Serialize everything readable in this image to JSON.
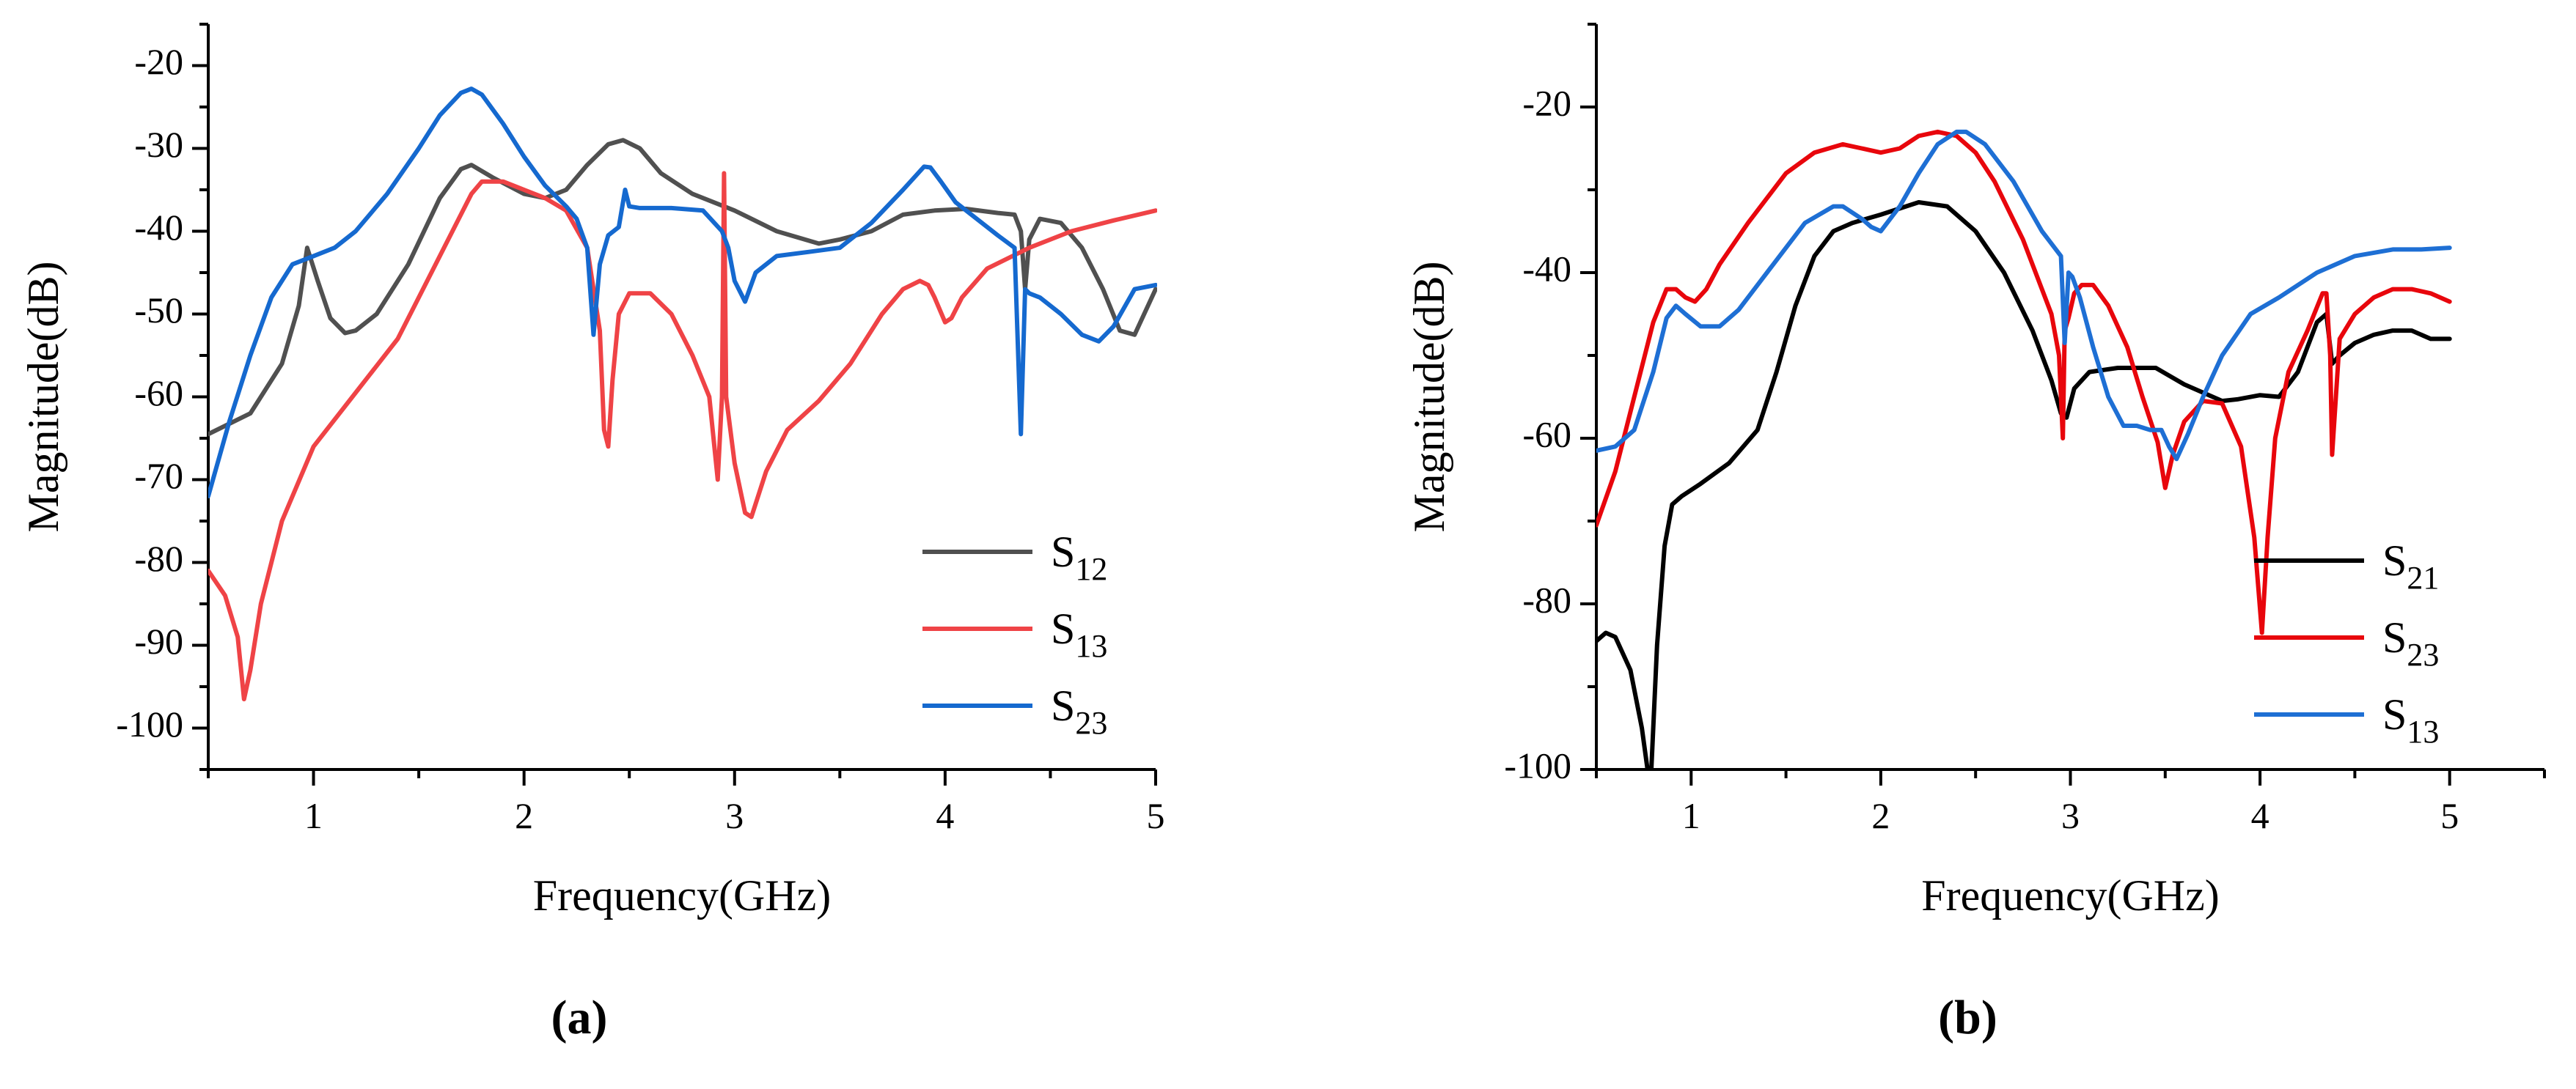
{
  "chart_data": [
    {
      "type": "line",
      "panel_label": "(a)",
      "xlabel": "Frequency(GHz)",
      "ylabel": "Magnitude(dB)",
      "xlim": [
        0.5,
        5
      ],
      "ylim": [
        -105,
        -15
      ],
      "xticks": [
        1,
        2,
        3,
        4,
        5
      ],
      "yticks": [
        -20,
        -30,
        -40,
        -50,
        -60,
        -70,
        -80,
        -90,
        -100
      ],
      "grid": false,
      "legend_position": "bottom-right",
      "series": [
        {
          "name": "S12",
          "label_main": "S",
          "label_sub": "12",
          "color": "#505050",
          "x": [
            0.5,
            0.7,
            0.85,
            0.93,
            0.97,
            1.02,
            1.08,
            1.15,
            1.2,
            1.3,
            1.45,
            1.6,
            1.7,
            1.75,
            1.85,
            2.0,
            2.1,
            2.2,
            2.3,
            2.4,
            2.47,
            2.55,
            2.65,
            2.8,
            3.0,
            3.2,
            3.4,
            3.5,
            3.65,
            3.8,
            3.95,
            4.1,
            4.25,
            4.33,
            4.36,
            4.38,
            4.4,
            4.45,
            4.55,
            4.65,
            4.75,
            4.83,
            4.9,
            5.0
          ],
          "y": [
            -64.5,
            -62,
            -56,
            -49,
            -42,
            -46,
            -50.5,
            -52.3,
            -52,
            -50,
            -44,
            -36,
            -32.5,
            -32,
            -33.5,
            -35.5,
            -36,
            -35,
            -32,
            -29.5,
            -29,
            -30,
            -33,
            -35.5,
            -37.5,
            -40,
            -41.5,
            -41,
            -40,
            -38,
            -37.5,
            -37.3,
            -37.8,
            -38,
            -40,
            -47,
            -41,
            -38.5,
            -39,
            -42,
            -47,
            -52,
            -52.5,
            -47
          ]
        },
        {
          "name": "S13",
          "label_main": "S",
          "label_sub": "13",
          "color": "#EF4346",
          "x": [
            0.5,
            0.58,
            0.64,
            0.67,
            0.7,
            0.75,
            0.85,
            1.0,
            1.2,
            1.4,
            1.6,
            1.75,
            1.8,
            1.9,
            2.0,
            2.1,
            2.2,
            2.3,
            2.36,
            2.38,
            2.4,
            2.42,
            2.45,
            2.5,
            2.6,
            2.7,
            2.8,
            2.88,
            2.92,
            2.94,
            2.95,
            2.96,
            3.0,
            3.05,
            3.08,
            3.15,
            3.25,
            3.4,
            3.55,
            3.7,
            3.8,
            3.88,
            3.92,
            3.95,
            4.0,
            4.03,
            4.08,
            4.2,
            4.4,
            4.6,
            4.8,
            5.0
          ],
          "y": [
            -81,
            -84,
            -89,
            -96.5,
            -93,
            -85,
            -75,
            -66,
            -59.5,
            -53,
            -43,
            -35.5,
            -34,
            -34,
            -35,
            -36,
            -37.5,
            -42,
            -52,
            -64,
            -66,
            -58,
            -50,
            -47.5,
            -47.5,
            -50,
            -55,
            -60,
            -70,
            -60,
            -33,
            -60,
            -68,
            -74,
            -74.5,
            -69,
            -64,
            -60.5,
            -56,
            -50,
            -47,
            -46,
            -46.5,
            -48,
            -51,
            -50.5,
            -48,
            -44.5,
            -42,
            -40,
            -38.7,
            -37.5
          ]
        },
        {
          "name": "S23",
          "label_main": "S",
          "label_sub": "23",
          "color": "#1569CF",
          "x": [
            0.5,
            0.6,
            0.7,
            0.8,
            0.9,
            1.0,
            1.1,
            1.2,
            1.35,
            1.5,
            1.6,
            1.7,
            1.75,
            1.8,
            1.9,
            2.0,
            2.1,
            2.2,
            2.25,
            2.3,
            2.33,
            2.36,
            2.4,
            2.45,
            2.48,
            2.5,
            2.55,
            2.7,
            2.85,
            2.94,
            2.97,
            3.0,
            3.05,
            3.1,
            3.2,
            3.35,
            3.5,
            3.65,
            3.8,
            3.9,
            3.93,
            3.98,
            4.05,
            4.15,
            4.25,
            4.33,
            4.36,
            4.38,
            4.4,
            4.45,
            4.55,
            4.65,
            4.73,
            4.8,
            4.9,
            5.0
          ],
          "y": [
            -72,
            -63,
            -55,
            -48,
            -44,
            -43,
            -42,
            -40,
            -35.5,
            -30,
            -26,
            -23.3,
            -22.8,
            -23.5,
            -27,
            -31,
            -34.5,
            -37,
            -38.5,
            -42,
            -52.5,
            -44,
            -40.5,
            -39.5,
            -35,
            -37,
            -37.2,
            -37.2,
            -37.5,
            -40,
            -42,
            -46,
            -48.5,
            -45,
            -43,
            -42.5,
            -42,
            -39,
            -35,
            -32.2,
            -32.3,
            -34,
            -36.5,
            -38.5,
            -40.5,
            -42,
            -64.5,
            -47,
            -47.5,
            -48,
            -50,
            -52.5,
            -53.3,
            -51.5,
            -47,
            -46.5
          ]
        }
      ]
    },
    {
      "type": "line",
      "panel_label": "(b)",
      "xlabel": "Frequency(GHz)",
      "ylabel": "Magnitude(dB)",
      "xlim": [
        0.5,
        5.5
      ],
      "ylim": [
        -100,
        -10
      ],
      "xticks": [
        1,
        2,
        3,
        4,
        5
      ],
      "yticks": [
        -20,
        -40,
        -60,
        -80,
        -100
      ],
      "grid": false,
      "legend_position": "bottom-right",
      "series": [
        {
          "name": "S21",
          "label_main": "S",
          "label_sub": "21",
          "color": "#000000",
          "x": [
            0.5,
            0.55,
            0.6,
            0.68,
            0.74,
            0.77,
            0.79,
            0.82,
            0.86,
            0.9,
            0.95,
            1.05,
            1.2,
            1.35,
            1.45,
            1.55,
            1.65,
            1.75,
            1.85,
            2.0,
            2.2,
            2.35,
            2.5,
            2.65,
            2.8,
            2.9,
            2.95,
            2.98,
            3.02,
            3.1,
            3.25,
            3.45,
            3.6,
            3.8,
            3.88,
            4.0,
            4.1,
            4.2,
            4.3,
            4.35,
            4.38,
            4.42,
            4.5,
            4.6,
            4.7,
            4.8,
            4.9,
            5.0
          ],
          "y": [
            -84.5,
            -83.5,
            -84,
            -88,
            -95,
            -100,
            -100,
            -85,
            -73,
            -68,
            -67,
            -65.5,
            -63,
            -59,
            -52,
            -44,
            -38,
            -35,
            -34,
            -33,
            -31.5,
            -32,
            -35,
            -40,
            -47,
            -53,
            -57,
            -57.5,
            -54,
            -52,
            -51.5,
            -51.5,
            -53.5,
            -55.5,
            -55.3,
            -54.8,
            -55,
            -52,
            -46,
            -45,
            -51,
            -50,
            -48.5,
            -47.5,
            -47,
            -47,
            -48,
            -48
          ]
        },
        {
          "name": "S23",
          "label_main": "S",
          "label_sub": "23",
          "color": "#E8060C",
          "x": [
            0.5,
            0.6,
            0.7,
            0.8,
            0.87,
            0.92,
            0.97,
            1.02,
            1.08,
            1.15,
            1.3,
            1.5,
            1.65,
            1.8,
            1.9,
            2.0,
            2.1,
            2.2,
            2.3,
            2.4,
            2.5,
            2.6,
            2.75,
            2.9,
            2.94,
            2.96,
            2.97,
            2.99,
            3.02,
            3.06,
            3.12,
            3.2,
            3.3,
            3.38,
            3.46,
            3.5,
            3.54,
            3.6,
            3.7,
            3.8,
            3.9,
            3.97,
            4.01,
            4.04,
            4.08,
            4.15,
            4.25,
            4.33,
            4.35,
            4.37,
            4.38,
            4.42,
            4.5,
            4.6,
            4.7,
            4.8,
            4.9,
            5.0
          ],
          "y": [
            -70.5,
            -64,
            -55,
            -46,
            -42,
            -42,
            -43,
            -43.5,
            -42,
            -39,
            -34,
            -28,
            -25.5,
            -24.5,
            -25,
            -25.5,
            -25,
            -23.5,
            -23,
            -23.5,
            -25.5,
            -29,
            -36,
            -45,
            -50,
            -60,
            -47,
            -45.5,
            -42.5,
            -41.5,
            -41.5,
            -44,
            -49,
            -55,
            -60.5,
            -66,
            -62,
            -58,
            -55.5,
            -55.8,
            -61,
            -72,
            -83.5,
            -72,
            -60,
            -52,
            -47,
            -42.5,
            -42.5,
            -50,
            -62,
            -48,
            -45,
            -43,
            -42,
            -42,
            -42.5,
            -43.5
          ]
        },
        {
          "name": "S13",
          "label_main": "S",
          "label_sub": "13",
          "color": "#1E6FD4",
          "x": [
            0.5,
            0.6,
            0.7,
            0.8,
            0.87,
            0.92,
            0.97,
            1.05,
            1.15,
            1.25,
            1.4,
            1.6,
            1.75,
            1.8,
            1.9,
            1.95,
            2.0,
            2.1,
            2.2,
            2.3,
            2.4,
            2.45,
            2.55,
            2.7,
            2.85,
            2.95,
            2.97,
            2.99,
            3.01,
            3.05,
            3.12,
            3.2,
            3.28,
            3.35,
            3.42,
            3.48,
            3.52,
            3.56,
            3.62,
            3.7,
            3.8,
            3.95,
            4.1,
            4.3,
            4.5,
            4.7,
            4.85,
            5.0
          ],
          "y": [
            -61.5,
            -61,
            -59,
            -52,
            -45.5,
            -44,
            -45,
            -46.5,
            -46.5,
            -44.5,
            -40,
            -34,
            -32,
            -32,
            -33.5,
            -34.5,
            -35,
            -32,
            -28,
            -24.5,
            -23,
            -23,
            -24.5,
            -29,
            -35,
            -38,
            -48.5,
            -40,
            -40.5,
            -43,
            -49,
            -55,
            -58.5,
            -58.5,
            -59,
            -59,
            -61,
            -62.5,
            -59.5,
            -55,
            -50,
            -45,
            -43,
            -40,
            -38,
            -37.2,
            -37.2,
            -37
          ]
        }
      ]
    }
  ]
}
